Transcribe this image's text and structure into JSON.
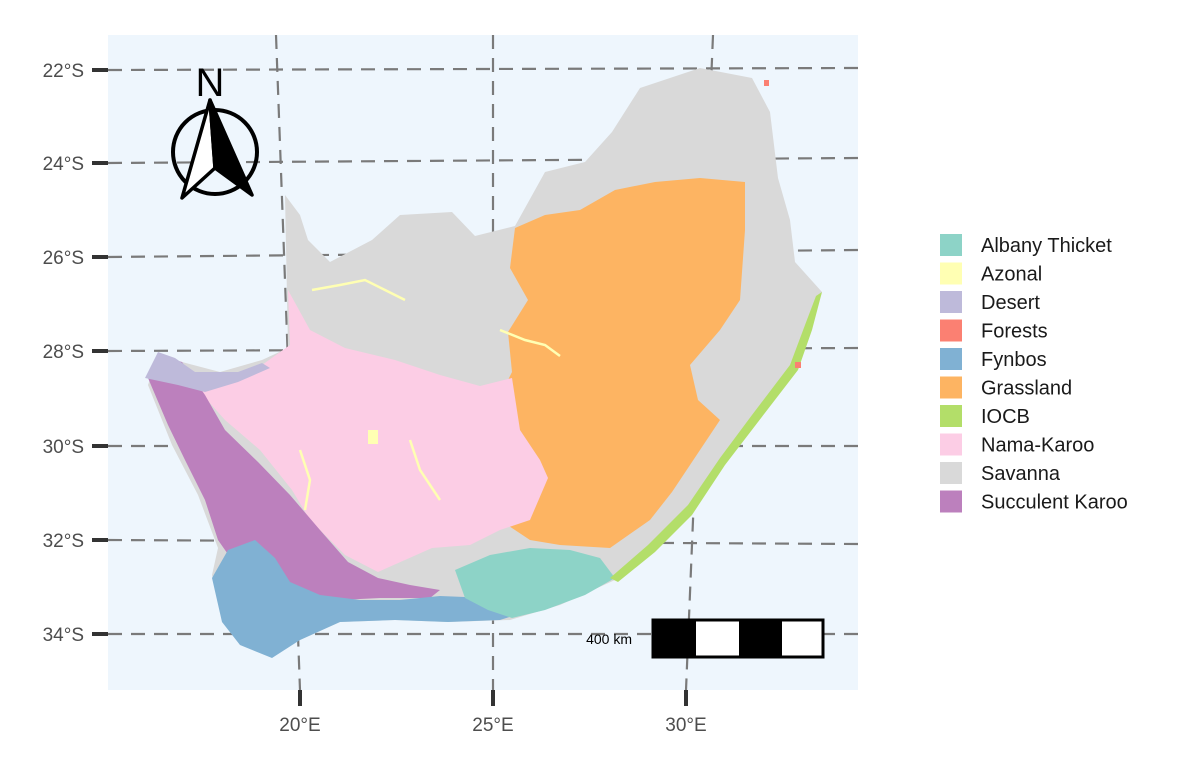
{
  "map": {
    "lat_labels": [
      "22°S",
      "24°S",
      "26°S",
      "28°S",
      "30°S",
      "32°S",
      "34°S"
    ],
    "lon_labels": [
      "20°E",
      "25°E",
      "30°E"
    ],
    "north_label": "N",
    "scale_label": "400 km",
    "colors": {
      "panel_bg": "#eef6fd",
      "grid": "#7a7a7a",
      "outline": "#000000"
    }
  },
  "legend": {
    "items": [
      {
        "label": "Albany Thicket",
        "color": "#8dd3c7"
      },
      {
        "label": "Azonal",
        "color": "#ffffb3"
      },
      {
        "label": "Desert",
        "color": "#bebada"
      },
      {
        "label": "Forests",
        "color": "#fb8072"
      },
      {
        "label": "Fynbos",
        "color": "#80b1d3"
      },
      {
        "label": "Grassland",
        "color": "#fdb462"
      },
      {
        "label": "IOCB",
        "color": "#b3de69"
      },
      {
        "label": "Nama-Karoo",
        "color": "#fccde5"
      },
      {
        "label": "Savanna",
        "color": "#d9d9d9"
      },
      {
        "label": "Succulent Karoo",
        "color": "#bc80bd"
      }
    ]
  }
}
